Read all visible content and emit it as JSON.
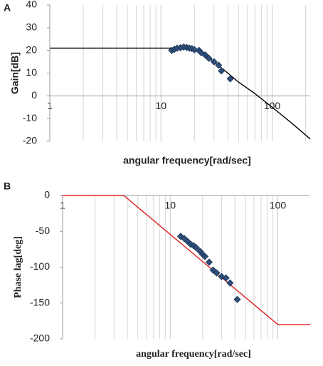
{
  "chart_data": [
    {
      "type": "line",
      "panel": "A",
      "x_log": true,
      "ylabel": "Gain[dB]",
      "xlabel": "angular frequency[rad/sec]",
      "font": "sans",
      "xlim": [
        1,
        220
      ],
      "xticks": [
        1,
        10,
        100
      ],
      "ylim": [
        -20,
        40
      ],
      "yticks": [
        -20,
        -10,
        0,
        10,
        20,
        30,
        40
      ],
      "minor_grid": true,
      "series": [
        {
          "kind": "line",
          "color": "#000000",
          "x": [
            1,
            12,
            15,
            20,
            25,
            30,
            40,
            50,
            70,
            100,
            150,
            220
          ],
          "values": [
            21,
            21,
            21.3,
            20,
            18,
            15,
            10,
            6,
            1,
            -5,
            -12,
            -19
          ]
        },
        {
          "kind": "diamond",
          "color": "#2e4d7b",
          "x": [
            12.5,
            13.2,
            14,
            15,
            16,
            17,
            18,
            19,
            20,
            22,
            23,
            25,
            27,
            30,
            33,
            35,
            42
          ],
          "values": [
            20,
            20.5,
            21,
            21.2,
            21.5,
            21.3,
            21,
            20.8,
            20.3,
            20,
            19,
            18,
            16.5,
            15,
            13.5,
            11,
            7.5
          ]
        }
      ]
    },
    {
      "type": "line",
      "panel": "B",
      "x_log": true,
      "ylabel": "Phase lag[deg]",
      "xlabel": "angular frequency[rad/sec]",
      "font": "serif",
      "xlim": [
        1,
        200
      ],
      "xticks": [
        1,
        10,
        100
      ],
      "ylim": [
        -200,
        0
      ],
      "yticks": [
        -200,
        -150,
        -100,
        -50,
        0
      ],
      "minor_grid": true,
      "series": [
        {
          "kind": "line",
          "color": "#e02020",
          "x": [
            1,
            3.7,
            100,
            200
          ],
          "values": [
            0,
            0,
            -180,
            -180
          ]
        },
        {
          "kind": "diamond",
          "color": "#2e4d7b",
          "x": [
            12.5,
            13.5,
            14.5,
            15.5,
            16.5,
            17.5,
            19,
            20,
            21,
            23,
            25,
            27,
            30,
            33,
            36,
            42
          ],
          "values": [
            -57,
            -60,
            -64,
            -68,
            -70,
            -73,
            -78,
            -82,
            -85,
            -93,
            -104,
            -108,
            -113,
            -115,
            -122,
            -145
          ]
        }
      ]
    }
  ]
}
